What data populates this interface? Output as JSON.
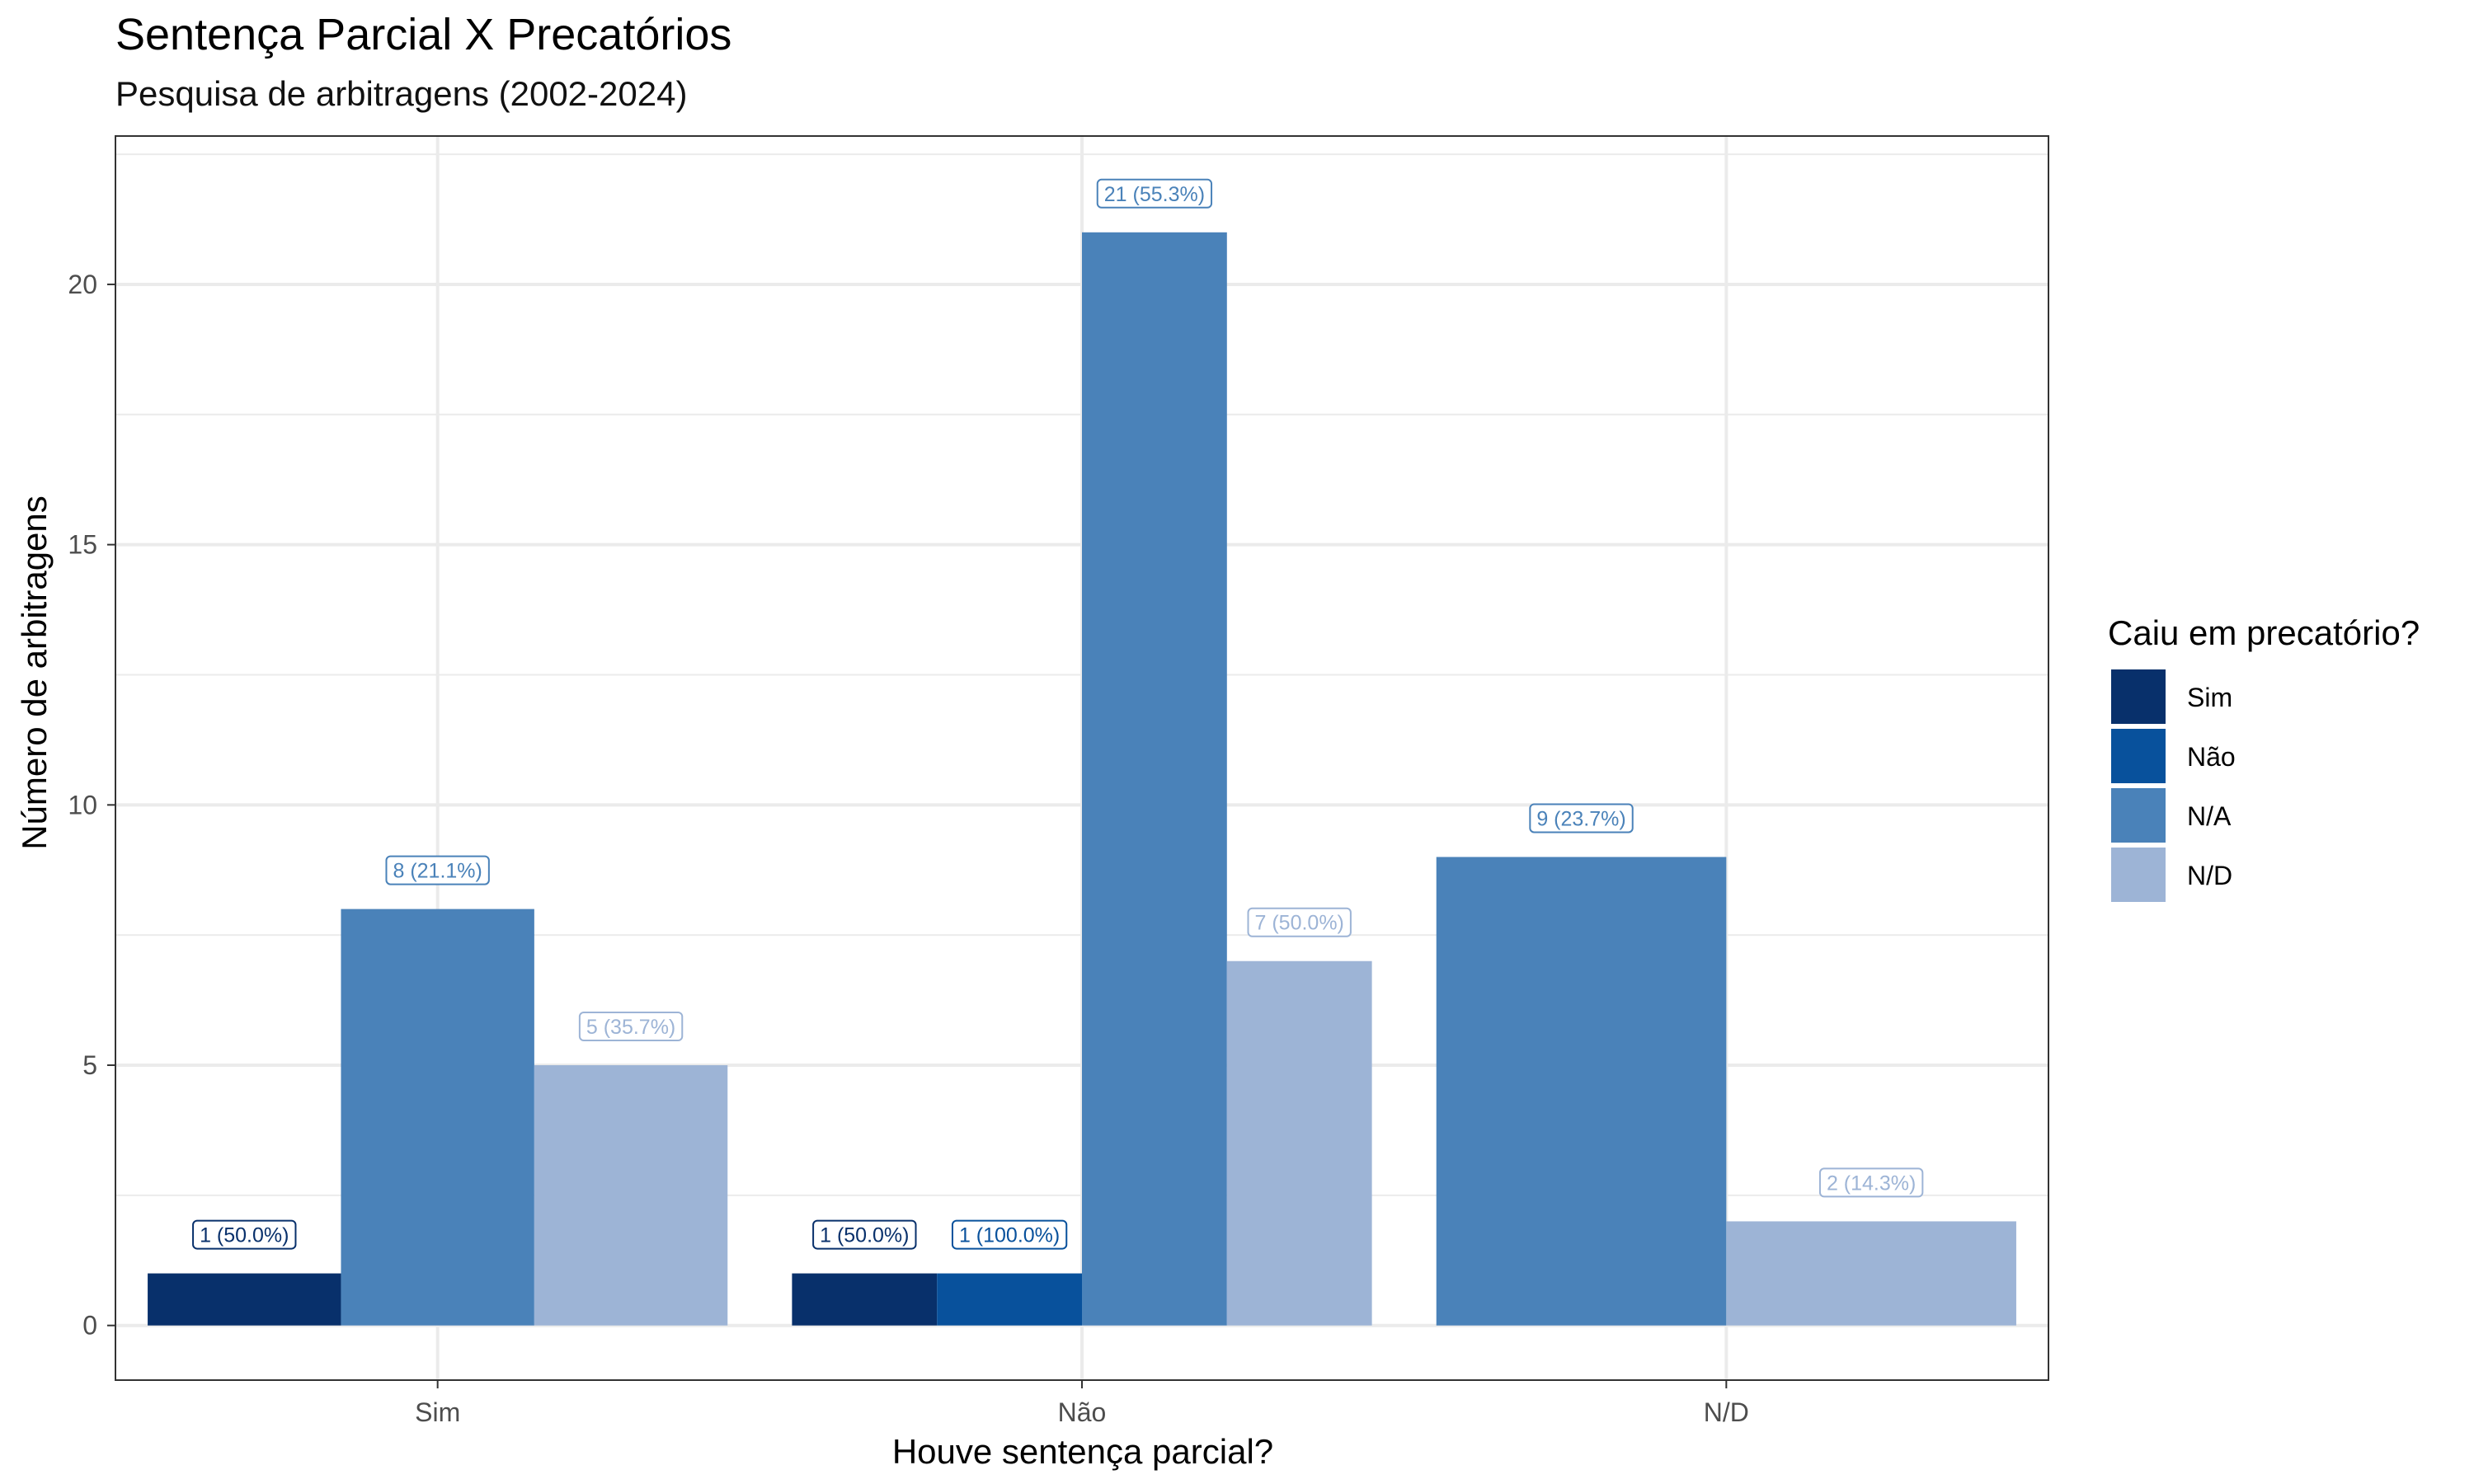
{
  "chart_data": {
    "type": "bar",
    "title": "Sentença Parcial X Precatórios",
    "subtitle": "Pesquisa de arbitragens (2002-2024)",
    "xlabel": "Houve sentença parcial?",
    "ylabel": "Número de arbitragens",
    "categories": [
      "Sim",
      "Não",
      "N/D"
    ],
    "ylim": [
      -1.05,
      22.85
    ],
    "yticks": [
      0,
      5,
      10,
      15,
      20
    ],
    "ytick_labels": [
      "0",
      "5",
      "10",
      "15",
      "20"
    ],
    "grid": true,
    "legend": {
      "title": "Caiu em precatório?",
      "position": "right",
      "entries": [
        "Sim",
        "Não",
        "N/A",
        "N/D"
      ]
    },
    "series": [
      {
        "name": "Sim",
        "color": "#08306b",
        "values": [
          1,
          1,
          null
        ],
        "labels": [
          "1 (50.0%)",
          "1 (50.0%)",
          null
        ]
      },
      {
        "name": "Não",
        "color": "#08519c",
        "values": [
          null,
          1,
          null
        ],
        "labels": [
          null,
          "1 (100.0%)",
          null
        ]
      },
      {
        "name": "N/A",
        "color": "#4a82b9",
        "values": [
          8,
          21,
          9
        ],
        "labels": [
          "8 (21.1%)",
          "21 (55.3%)",
          "9 (23.7%)"
        ]
      },
      {
        "name": "N/D",
        "color": "#9db4d6",
        "values": [
          5,
          7,
          2
        ],
        "labels": [
          "5 (35.7%)",
          "7 (50.0%)",
          "2 (14.3%)"
        ]
      }
    ]
  }
}
